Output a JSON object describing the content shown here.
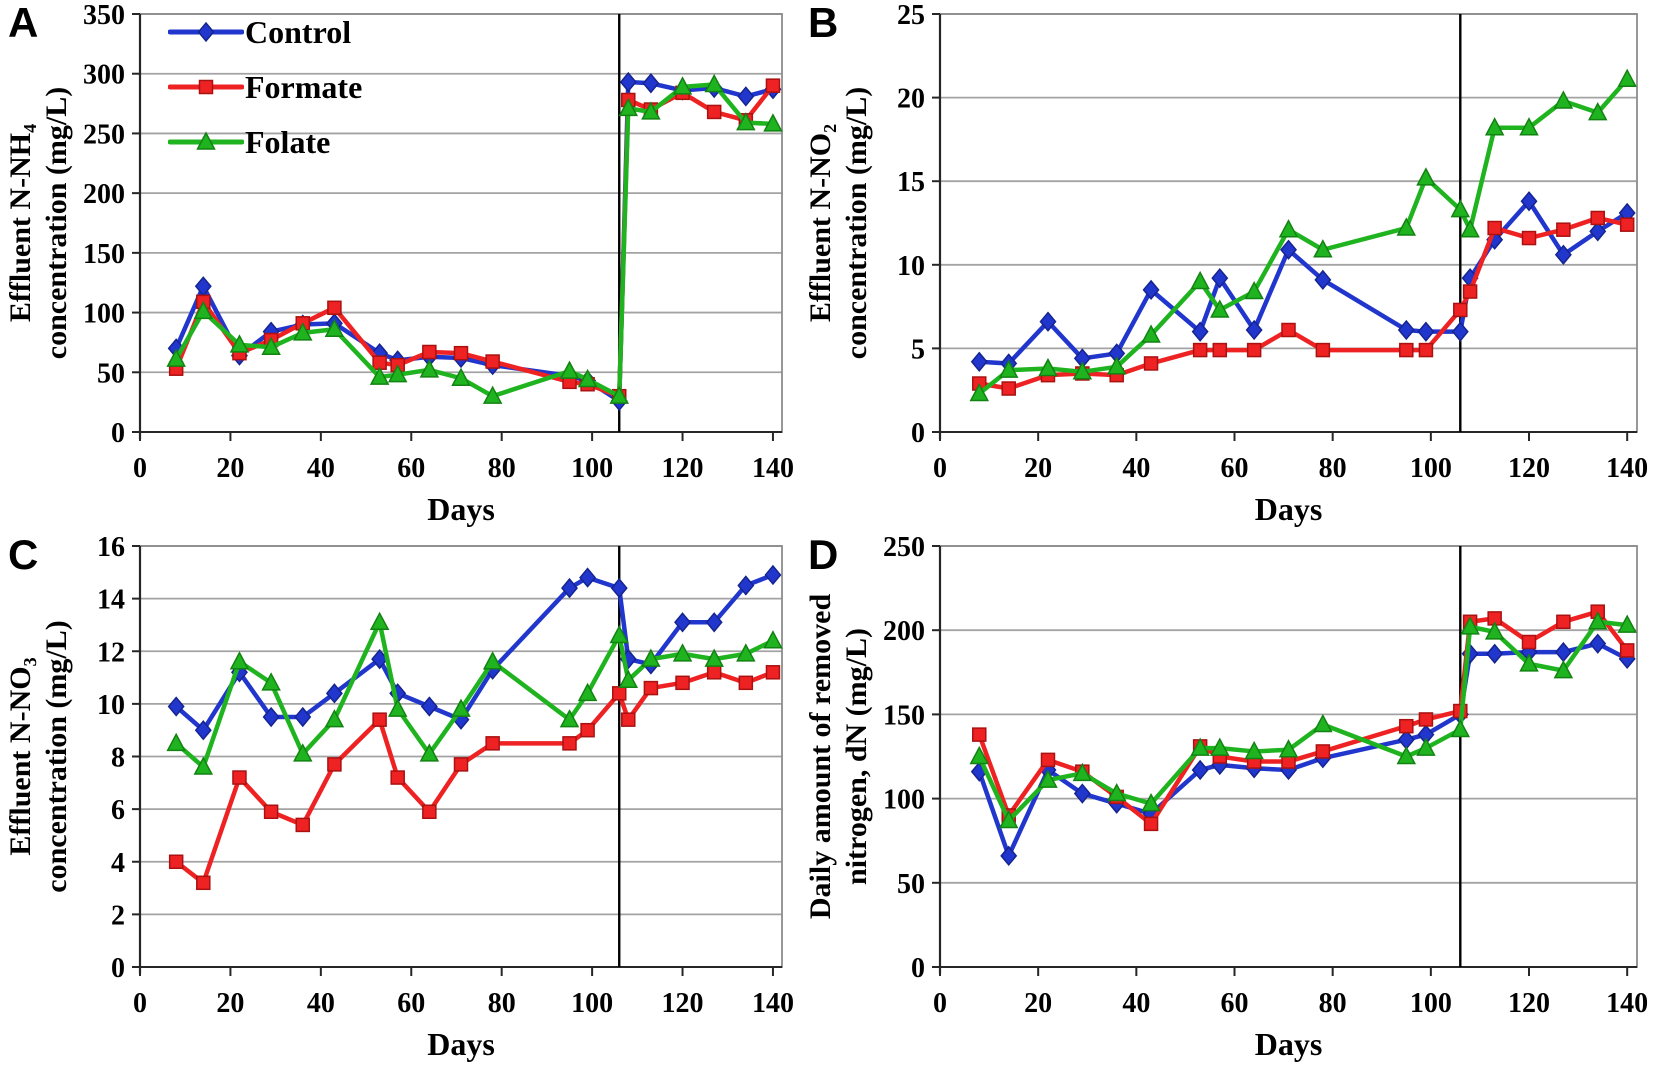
{
  "figure": {
    "panels": [
      {
        "letter": "A"
      },
      {
        "letter": "B"
      },
      {
        "letter": "C"
      },
      {
        "letter": "D"
      }
    ]
  },
  "legend": {
    "entries": [
      {
        "label": "Control",
        "color": "#2136cc",
        "edge": "#15248f",
        "marker": "diamond"
      },
      {
        "label": "Formate",
        "color": "#ee2222",
        "edge": "#aa1111",
        "marker": "square"
      },
      {
        "label": "Folate",
        "color": "#1fb41f",
        "edge": "#128212",
        "marker": "triangle"
      }
    ]
  },
  "chart_data": [
    {
      "type": "line",
      "panel": "A",
      "ylabel_lines": [
        "Effluent N-NH₄",
        "concentration (mg/L)"
      ],
      "xlabel": "Days",
      "ylim": [
        0,
        350
      ],
      "yticks": [
        0,
        50,
        100,
        150,
        200,
        250,
        300,
        350
      ],
      "xlim": [
        0,
        142
      ],
      "xticks": [
        0,
        20,
        40,
        60,
        80,
        100,
        120,
        140
      ],
      "vline_x": 106,
      "grid": "horizontal",
      "x": [
        8,
        14,
        22,
        29,
        36,
        43,
        53,
        57,
        64,
        71,
        78,
        95,
        99,
        106,
        108,
        113,
        120,
        127,
        134,
        140
      ],
      "series": [
        {
          "name": "Control",
          "marker": "diamond",
          "color": "#2136cc",
          "edge": "#15248f",
          "values": [
            70,
            122,
            64,
            84,
            90,
            91,
            66,
            60,
            63,
            62,
            56,
            47,
            43,
            26,
            293,
            292,
            286,
            288,
            281,
            287
          ]
        },
        {
          "name": "Formate",
          "marker": "square",
          "color": "#ee2222",
          "edge": "#aa1111",
          "values": [
            53,
            109,
            66,
            77,
            91,
            104,
            58,
            56,
            67,
            66,
            59,
            42,
            40,
            30,
            278,
            270,
            284,
            268,
            261,
            290
          ]
        },
        {
          "name": "Folate",
          "marker": "triangle",
          "color": "#1fb41f",
          "edge": "#128212",
          "values": [
            61,
            101,
            73,
            71,
            83,
            86,
            46,
            48,
            52,
            45,
            30,
            51,
            44,
            30,
            271,
            268,
            289,
            291,
            259,
            258
          ]
        }
      ]
    },
    {
      "type": "line",
      "panel": "B",
      "ylabel_lines": [
        "Effluent N-NO₂",
        "concentration (mg/L)"
      ],
      "xlabel": "Days",
      "ylim": [
        0,
        25
      ],
      "yticks": [
        0,
        5,
        10,
        15,
        20,
        25
      ],
      "xlim": [
        0,
        142
      ],
      "xticks": [
        0,
        20,
        40,
        60,
        80,
        100,
        120,
        140
      ],
      "vline_x": 106,
      "grid": "horizontal",
      "x": [
        8,
        14,
        22,
        29,
        36,
        43,
        53,
        57,
        64,
        71,
        78,
        95,
        99,
        106,
        108,
        113,
        120,
        127,
        134,
        140
      ],
      "series": [
        {
          "name": "Control",
          "marker": "diamond",
          "color": "#2136cc",
          "edge": "#15248f",
          "values": [
            4.2,
            4.1,
            6.6,
            4.4,
            4.7,
            8.5,
            6.0,
            9.2,
            6.1,
            10.9,
            9.1,
            6.1,
            6.0,
            6.0,
            9.2,
            11.5,
            13.8,
            10.6,
            12.0,
            13.1
          ]
        },
        {
          "name": "Formate",
          "marker": "square",
          "color": "#ee2222",
          "edge": "#aa1111",
          "values": [
            2.9,
            2.6,
            3.4,
            3.5,
            3.4,
            4.1,
            4.9,
            4.9,
            4.9,
            6.1,
            4.9,
            4.9,
            4.9,
            7.3,
            8.4,
            12.2,
            11.6,
            12.1,
            12.8,
            12.4
          ]
        },
        {
          "name": "Folate",
          "marker": "triangle",
          "color": "#1fb41f",
          "edge": "#128212",
          "values": [
            2.3,
            3.7,
            3.8,
            3.6,
            3.9,
            5.8,
            9.0,
            7.3,
            8.4,
            12.1,
            10.9,
            12.2,
            15.2,
            13.3,
            12.1,
            18.2,
            18.2,
            19.8,
            19.1,
            21.1
          ]
        }
      ]
    },
    {
      "type": "line",
      "panel": "C",
      "ylabel_lines": [
        "Effluent N-NO₃",
        "concentration (mg/L)"
      ],
      "xlabel": "Days",
      "ylim": [
        0,
        16
      ],
      "yticks": [
        0,
        2,
        4,
        6,
        8,
        10,
        12,
        14,
        16
      ],
      "xlim": [
        0,
        142
      ],
      "xticks": [
        0,
        20,
        40,
        60,
        80,
        100,
        120,
        140
      ],
      "vline_x": 106,
      "grid": "horizontal",
      "x": [
        8,
        14,
        22,
        29,
        36,
        43,
        53,
        57,
        64,
        71,
        78,
        95,
        99,
        106,
        108,
        113,
        120,
        127,
        134,
        140
      ],
      "series": [
        {
          "name": "Control",
          "marker": "diamond",
          "color": "#2136cc",
          "edge": "#15248f",
          "values": [
            9.9,
            9.0,
            11.2,
            9.5,
            9.5,
            10.4,
            11.7,
            10.4,
            9.9,
            9.4,
            11.3,
            14.4,
            14.8,
            14.4,
            11.7,
            11.5,
            13.1,
            13.1,
            14.5,
            14.9
          ]
        },
        {
          "name": "Formate",
          "marker": "square",
          "color": "#ee2222",
          "edge": "#aa1111",
          "values": [
            4.0,
            3.2,
            7.2,
            5.9,
            5.4,
            7.7,
            9.4,
            7.2,
            5.9,
            7.7,
            8.5,
            8.5,
            9.0,
            10.4,
            9.4,
            10.6,
            10.8,
            11.2,
            10.8,
            11.2
          ]
        },
        {
          "name": "Folate",
          "marker": "triangle",
          "color": "#1fb41f",
          "edge": "#128212",
          "values": [
            8.5,
            7.6,
            11.6,
            10.8,
            8.1,
            9.4,
            13.1,
            9.8,
            8.1,
            9.8,
            11.6,
            9.4,
            10.4,
            12.6,
            10.9,
            11.7,
            11.9,
            11.7,
            11.9,
            12.4
          ]
        }
      ]
    },
    {
      "type": "line",
      "panel": "D",
      "ylabel_lines": [
        "Daily amount of removed",
        "nitrogen, dN (mg/L)"
      ],
      "xlabel": "Days",
      "ylim": [
        0,
        250
      ],
      "yticks": [
        0,
        50,
        100,
        150,
        200,
        250
      ],
      "xlim": [
        0,
        142
      ],
      "xticks": [
        0,
        20,
        40,
        60,
        80,
        100,
        120,
        140
      ],
      "vline_x": 106,
      "grid": "horizontal",
      "x": [
        8,
        14,
        22,
        29,
        36,
        43,
        53,
        57,
        64,
        71,
        78,
        95,
        99,
        106,
        108,
        113,
        120,
        127,
        134,
        140
      ],
      "series": [
        {
          "name": "Control",
          "marker": "diamond",
          "color": "#2136cc",
          "edge": "#15248f",
          "values": [
            116,
            66,
            117,
            103,
            97,
            91,
            117,
            120,
            118,
            117,
            124,
            135,
            138,
            150,
            186,
            186,
            187,
            187,
            192,
            183
          ]
        },
        {
          "name": "Formate",
          "marker": "square",
          "color": "#ee2222",
          "edge": "#aa1111",
          "values": [
            138,
            90,
            123,
            116,
            101,
            85,
            131,
            125,
            122,
            122,
            128,
            143,
            147,
            152,
            205,
            207,
            193,
            205,
            211,
            188
          ]
        },
        {
          "name": "Folate",
          "marker": "triangle",
          "color": "#1fb41f",
          "edge": "#128212",
          "values": [
            125,
            87,
            111,
            115,
            103,
            97,
            130,
            130,
            128,
            129,
            144,
            125,
            130,
            141,
            202,
            199,
            180,
            176,
            205,
            203
          ]
        }
      ]
    }
  ]
}
